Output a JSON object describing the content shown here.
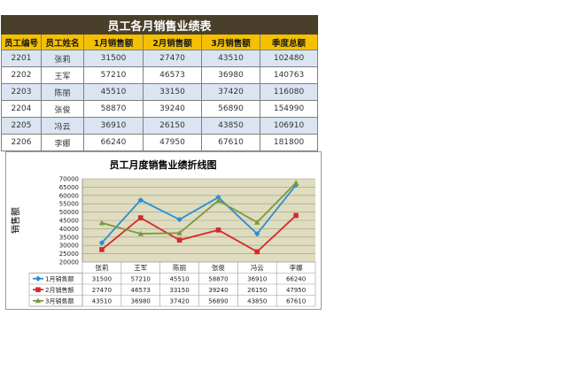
{
  "table": {
    "title": "员工各月销售业绩表",
    "headers": [
      "员工编号",
      "员工姓名",
      "1月销售额",
      "2月销售额",
      "3月销售额",
      "季度总额"
    ],
    "rows": [
      [
        "2201",
        "张莉",
        "31500",
        "27470",
        "43510",
        "102480"
      ],
      [
        "2202",
        "王军",
        "57210",
        "46573",
        "36980",
        "140763"
      ],
      [
        "2203",
        "陈丽",
        "45510",
        "33150",
        "37420",
        "116080"
      ],
      [
        "2204",
        "张俊",
        "58870",
        "39240",
        "56890",
        "154990"
      ],
      [
        "2205",
        "冯云",
        "36910",
        "26150",
        "43850",
        "106910"
      ],
      [
        "2206",
        "李娜",
        "66240",
        "47950",
        "67610",
        "181800"
      ]
    ]
  },
  "chart_data": {
    "type": "line",
    "title": "员工月度销售业绩折线图",
    "ylabel": "销售额",
    "xlabel": "",
    "categories": [
      "张莉",
      "王军",
      "陈丽",
      "张俊",
      "冯云",
      "李娜"
    ],
    "ylim": [
      20000,
      70000
    ],
    "yticks": [
      20000,
      25000,
      30000,
      35000,
      40000,
      45000,
      50000,
      55000,
      60000,
      65000,
      70000
    ],
    "grid": true,
    "legend": "data-table",
    "series": [
      {
        "name": "1月销售额",
        "color": "#2a8fd6",
        "marker": "diamond",
        "values": [
          31500,
          57210,
          45510,
          58870,
          36910,
          66240
        ]
      },
      {
        "name": "2月销售额",
        "color": "#d42a2a",
        "marker": "square",
        "values": [
          27470,
          46573,
          33150,
          39240,
          26150,
          47950
        ]
      },
      {
        "name": "3月销售额",
        "color": "#7a9a3a",
        "marker": "triangle",
        "values": [
          43510,
          36980,
          37420,
          56890,
          43850,
          67610
        ]
      }
    ],
    "colors": {
      "plot_bg": "#dfdcc0",
      "grid": "#9c9c84",
      "axis": "#808080"
    }
  }
}
